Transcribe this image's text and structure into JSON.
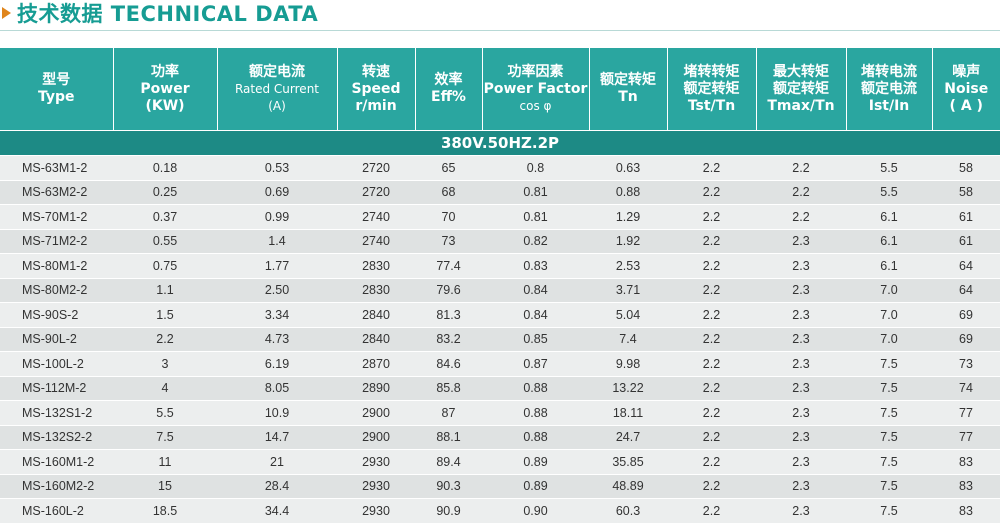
{
  "title": "技术数据 TECHNICAL DATA",
  "colors": {
    "accent": "#169c93",
    "header_bg": "#2aa6a0",
    "group_bg": "#1d8a85",
    "arrow": "#e0851c"
  },
  "columns": [
    {
      "zh": "型号",
      "en": "Type"
    },
    {
      "zh": "功率",
      "en": "Power",
      "unit": "(KW)"
    },
    {
      "zh": "额定电流",
      "en": "Rated Current",
      "unit": "(A)"
    },
    {
      "zh": "转速",
      "en": "Speed",
      "unit": "r/min"
    },
    {
      "zh": "效率",
      "en": "Eff%"
    },
    {
      "zh": "功率因素",
      "en": "Power Factor",
      "unit": "cos φ"
    },
    {
      "zh": "额定转矩",
      "en": "Tn"
    },
    {
      "zh": "堵转转矩",
      "zh2": "额定转矩",
      "en": "Tst/Tn"
    },
    {
      "zh": "最大转矩",
      "zh2": "额定转矩",
      "en": "Tmax/Tn"
    },
    {
      "zh": "堵转电流",
      "zh2": "额定电流",
      "en": "Ist/In"
    },
    {
      "zh": "噪声",
      "en": "Noise",
      "unit": "( A )"
    }
  ],
  "group_label": "380V.50HZ.2P",
  "rows": [
    [
      "MS-63M1-2",
      "0.18",
      "0.53",
      "2720",
      "65",
      "0.8",
      "0.63",
      "2.2",
      "2.2",
      "5.5",
      "58"
    ],
    [
      "MS-63M2-2",
      "0.25",
      "0.69",
      "2720",
      "68",
      "0.81",
      "0.88",
      "2.2",
      "2.2",
      "5.5",
      "58"
    ],
    [
      "MS-70M1-2",
      "0.37",
      "0.99",
      "2740",
      "70",
      "0.81",
      "1.29",
      "2.2",
      "2.2",
      "6.1",
      "61"
    ],
    [
      "MS-71M2-2",
      "0.55",
      "1.4",
      "2740",
      "73",
      "0.82",
      "1.92",
      "2.2",
      "2.3",
      "6.1",
      "61"
    ],
    [
      "MS-80M1-2",
      "0.75",
      "1.77",
      "2830",
      "77.4",
      "0.83",
      "2.53",
      "2.2",
      "2.3",
      "6.1",
      "64"
    ],
    [
      "MS-80M2-2",
      "1.1",
      "2.50",
      "2830",
      "79.6",
      "0.84",
      "3.71",
      "2.2",
      "2.3",
      "7.0",
      "64"
    ],
    [
      "MS-90S-2",
      "1.5",
      "3.34",
      "2840",
      "81.3",
      "0.84",
      "5.04",
      "2.2",
      "2.3",
      "7.0",
      "69"
    ],
    [
      "MS-90L-2",
      "2.2",
      "4.73",
      "2840",
      "83.2",
      "0.85",
      "7.4",
      "2.2",
      "2.3",
      "7.0",
      "69"
    ],
    [
      "MS-100L-2",
      "3",
      "6.19",
      "2870",
      "84.6",
      "0.87",
      "9.98",
      "2.2",
      "2.3",
      "7.5",
      "73"
    ],
    [
      "MS-112M-2",
      "4",
      "8.05",
      "2890",
      "85.8",
      "0.88",
      "13.22",
      "2.2",
      "2.3",
      "7.5",
      "74"
    ],
    [
      "MS-132S1-2",
      "5.5",
      "10.9",
      "2900",
      "87",
      "0.88",
      "18.11",
      "2.2",
      "2.3",
      "7.5",
      "77"
    ],
    [
      "MS-132S2-2",
      "7.5",
      "14.7",
      "2900",
      "88.1",
      "0.88",
      "24.7",
      "2.2",
      "2.3",
      "7.5",
      "77"
    ],
    [
      "MS-160M1-2",
      "11",
      "21",
      "2930",
      "89.4",
      "0.89",
      "35.85",
      "2.2",
      "2.3",
      "7.5",
      "83"
    ],
    [
      "MS-160M2-2",
      "15",
      "28.4",
      "2930",
      "90.3",
      "0.89",
      "48.89",
      "2.2",
      "2.3",
      "7.5",
      "83"
    ],
    [
      "MS-160L-2",
      "18.5",
      "34.4",
      "2930",
      "90.9",
      "0.90",
      "60.3",
      "2.2",
      "2.3",
      "7.5",
      "83"
    ]
  ]
}
